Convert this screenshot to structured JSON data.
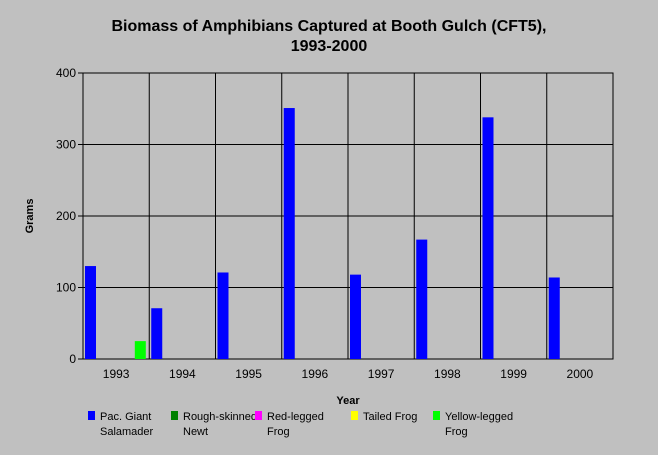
{
  "chart_data": {
    "type": "bar",
    "title_lines": [
      "Biomass of Amphibians Captured at Booth Gulch (CFT5),",
      "1993-2000"
    ],
    "xlabel": "Year",
    "ylabel": "Grams",
    "ylim": [
      0,
      400
    ],
    "yticks": [
      0,
      100,
      200,
      300,
      400
    ],
    "grid": true,
    "legend_position": "bottom",
    "categories": [
      "1993",
      "1994",
      "1995",
      "1996",
      "1997",
      "1998",
      "1999",
      "2000"
    ],
    "series": [
      {
        "name": "Pac. Giant Salamader",
        "name_lines": [
          "Pac. Giant",
          "Salamader"
        ],
        "color": "#0000ff",
        "values": [
          130,
          71,
          121,
          351,
          118,
          167,
          338,
          114
        ]
      },
      {
        "name": "Rough-skinned Newt",
        "name_lines": [
          "Rough-skinned",
          "Newt"
        ],
        "color": "#008000",
        "values": [
          0,
          0,
          0,
          0,
          0,
          0,
          0,
          0
        ]
      },
      {
        "name": "Red-legged Frog",
        "name_lines": [
          "Red-legged",
          "Frog"
        ],
        "color": "#ff00ff",
        "values": [
          0,
          0,
          0,
          0,
          0,
          0,
          0,
          0
        ]
      },
      {
        "name": "Tailed Frog",
        "name_lines": [
          "Tailed Frog"
        ],
        "color": "#ffff00",
        "values": [
          0,
          0,
          0,
          0,
          0,
          0,
          0,
          0
        ]
      },
      {
        "name": "Yellow-legged Frog",
        "name_lines": [
          "Yellow-legged",
          "Frog"
        ],
        "color": "#00ff00",
        "values": [
          25,
          0,
          0,
          0,
          0,
          0,
          0,
          0
        ]
      }
    ]
  }
}
